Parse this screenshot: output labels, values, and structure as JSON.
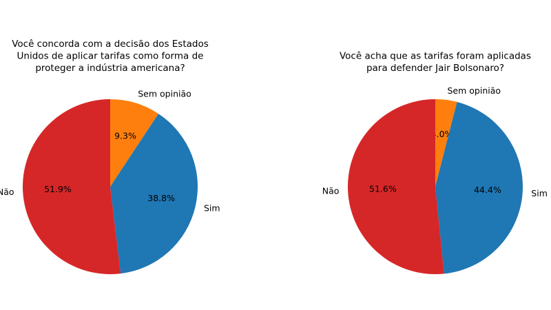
{
  "chart_data": [
    {
      "type": "pie",
      "title": [
        "Você concorda com a decisão dos Estados",
        "Unidos de aplicar tarifas como forma de",
        "proteger a indústria americana?"
      ],
      "labels": [
        "Sem opinião",
        "Sim",
        "Não"
      ],
      "values": [
        9.3,
        38.8,
        51.9
      ],
      "value_labels": [
        "9.3%",
        "38.8%",
        "51.9%"
      ],
      "colors": [
        "#ff7f0e",
        "#1f77b4",
        "#d62728"
      ],
      "start_angle": 90,
      "direction": "clockwise"
    },
    {
      "type": "pie",
      "title": [
        "Você acha que as tarifas foram aplicadas",
        "para defender Jair Bolsonaro?"
      ],
      "labels": [
        "Sem opinião",
        "Sim",
        "Não"
      ],
      "values": [
        4.0,
        44.4,
        51.6
      ],
      "value_labels": [
        "4.0%",
        "44.4%",
        "51.6%"
      ],
      "colors": [
        "#ff7f0e",
        "#1f77b4",
        "#d62728"
      ],
      "start_angle": 90,
      "direction": "clockwise"
    }
  ]
}
